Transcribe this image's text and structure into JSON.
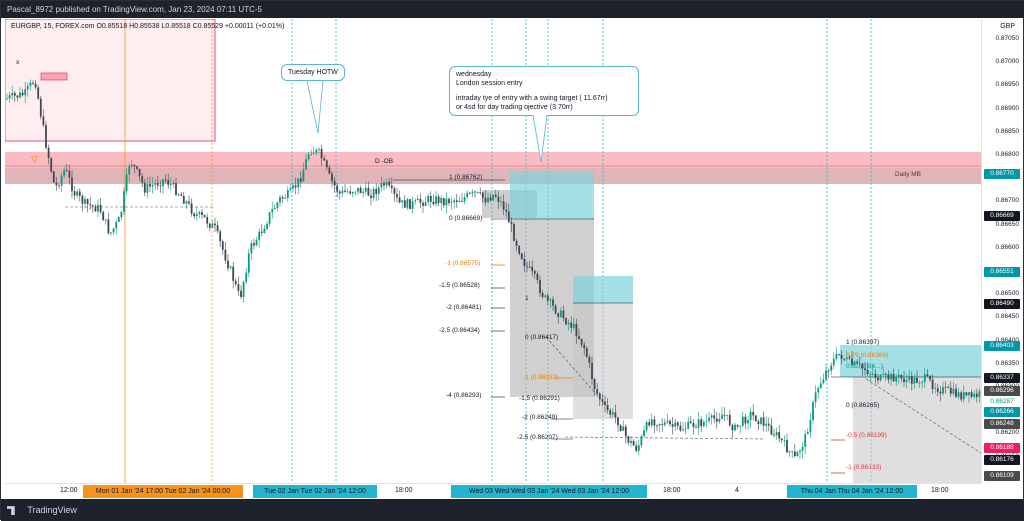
{
  "header": {
    "publish_line": "Pascal_8972 published on TradingView.com, Jan 23, 2024 07:11 UTC-5"
  },
  "symbol": {
    "line": "EURGBP, 15, FOREX.com",
    "ohlc": "O0.85518  H0.85538  L0.85518  C0.85529  +0.00011 (+0.01%)"
  },
  "currency": "GBP",
  "price_axis": {
    "labels": [
      "0.87050",
      "0.87000",
      "0.86950",
      "0.86900",
      "0.86850",
      "0.86800",
      "0.86750",
      "0.86700",
      "0.86650",
      "0.86600",
      "0.86550",
      "0.86500",
      "0.86450",
      "0.86400",
      "0.86350",
      "0.86300",
      "0.86250",
      "0.86200",
      "0.86150"
    ],
    "tags": [
      {
        "text": "0.86770",
        "color": "#0097a7"
      },
      {
        "text": "0.86669",
        "color": "#131722"
      },
      {
        "text": "0.86551",
        "color": "#0097a7"
      },
      {
        "text": "0.86490",
        "color": "#131722"
      },
      {
        "text": "0.86403",
        "color": "#0097a7"
      },
      {
        "text": "0.86337",
        "color": "#131722"
      },
      {
        "text": "0.86296",
        "color": "#4a4a4a"
      },
      {
        "text": "0.86287",
        "color": "#ffffff"
      },
      {
        "text": "0.86266",
        "color": "#0097a7"
      },
      {
        "text": "0.86248",
        "color": "#4a4a4a"
      },
      {
        "text": "0.86188",
        "color": "#e91e63"
      },
      {
        "text": "0.86176",
        "color": "#131722"
      },
      {
        "text": "0.86109",
        "color": "#4a4a4a"
      }
    ]
  },
  "time_axis": {
    "plain": [
      "12:00",
      "18:00",
      "4",
      "18:00"
    ],
    "highlighted": [
      {
        "text": "Mon 01 Jan '24   17:00   Tue 02 Jan '24   00:00",
        "color": "#f7931a"
      },
      {
        "text": "Tue 02 Jan   Tue 02 Jan '24   12:00",
        "color": "#22b5cf"
      },
      {
        "text": "Wed 03   Wed   Wed 03 Jan '24   Wed 03 Jan '24   12:00",
        "color": "#22b5cf"
      },
      {
        "text": "Thu 04 Jan   Thu 04 Jan '24   12:00",
        "color": "#22b5cf"
      }
    ]
  },
  "annotations": {
    "tuesday_hotw": "Tuesday HOTW",
    "wednesday_title": "wednesday",
    "wednesday_line2": "London session entry",
    "wednesday_line3": "intraday tye of entry with a swing target ( 11.67rr)",
    "wednesday_line4": "or 4sd for day trading ojective (3.70rr)",
    "daily_mb": "Daily MB",
    "d_label": "D -OB",
    "x_mark": "x"
  },
  "fib_left": [
    {
      "text": "1 (0.86762)",
      "color": "#131722"
    },
    {
      "text": "0 (0.86669)",
      "color": "#131722"
    },
    {
      "text": "-1 (0.86575)",
      "color": "#f57c00"
    },
    {
      "text": "-1.5 (0.86528)",
      "color": "#131722"
    },
    {
      "text": "-2 (0.86481)",
      "color": "#131722"
    },
    {
      "text": "-2.5 (0.86434)",
      "color": "#131722"
    },
    {
      "text": "-4 (0.86293)",
      "color": "#131722"
    }
  ],
  "fib_mid": [
    {
      "text": "1",
      "color": "#131722"
    },
    {
      "text": "0 (0.86417)",
      "color": "#131722"
    },
    {
      "text": "-1 (0.86333)",
      "color": "#f57c00"
    },
    {
      "text": "-1.5 (0.86291)",
      "color": "#131722"
    },
    {
      "text": "-2 (0.86249)",
      "color": "#131722"
    },
    {
      "text": "-2.5 (0.86207)",
      "color": "#131722"
    }
  ],
  "fib_right": [
    {
      "text": "1 (0.86397)",
      "color": "#131722"
    },
    {
      "text": "0.79 (0.86369)",
      "color": "#f57c00"
    },
    {
      "text": "0.62 (0.86...)",
      "color": "#089981"
    },
    {
      "text": "0 (0.86265)",
      "color": "#131722"
    },
    {
      "text": "-0.5 (0.86199)",
      "color": "#e53935"
    },
    {
      "text": "-1 (0.86133)",
      "color": "#e53935"
    }
  ],
  "footer": {
    "brand": "TradingView"
  }
}
